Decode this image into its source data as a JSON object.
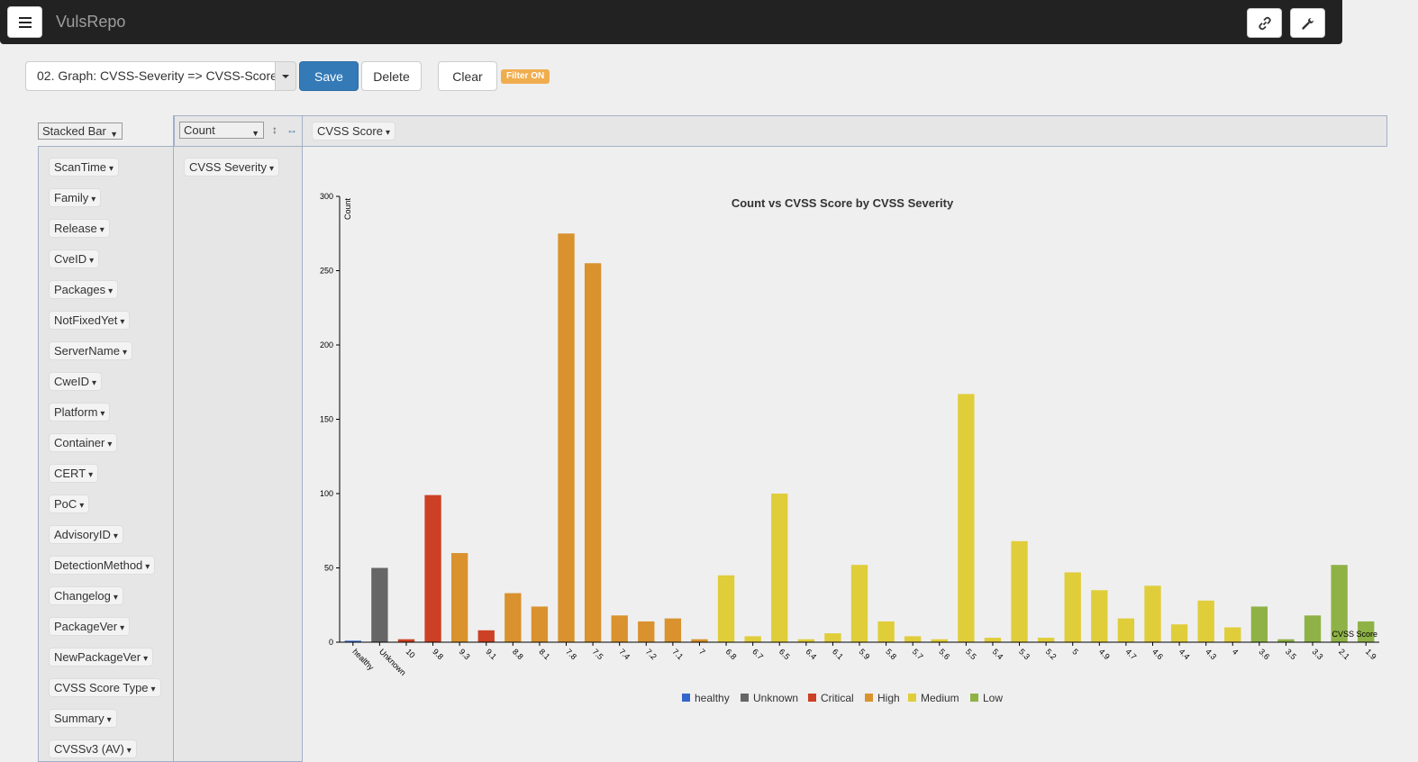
{
  "app": {
    "brand": "VulsRepo"
  },
  "toolbar": {
    "report_value": "02. Graph: CVSS-Severity => CVSS-Score",
    "save_label": "Save",
    "delete_label": "Delete",
    "clear_label": "Clear",
    "filter_badge": "Filter ON"
  },
  "pivot": {
    "renderer": "Stacked Bar",
    "aggregator": "Count",
    "column_attr": "CVSS Score",
    "row_attr": "CVSS Severity",
    "attributes": [
      "ScanTime",
      "Family",
      "Release",
      "CveID",
      "Packages",
      "NotFixedYet",
      "ServerName",
      "CweID",
      "Platform",
      "Container",
      "CERT",
      "PoC",
      "AdvisoryID",
      "DetectionMethod",
      "Changelog",
      "PackageVer",
      "NewPackageVer",
      "CVSS Score Type",
      "Summary",
      "CVSSv3 (AV)"
    ]
  },
  "colors": {
    "healthy": "#3366cc",
    "Unknown": "#666666",
    "Critical": "#cc4125",
    "High": "#d9922e",
    "Medium": "#e0cd3a",
    "Low": "#8fb247",
    "navbar": "#222222",
    "primary": "#337ab7",
    "filter_badge": "#f0ad4e"
  },
  "icons": {
    "menu": "menu-icon",
    "link": "link-icon",
    "settings": "wrench-icon"
  },
  "chart_data": {
    "type": "bar",
    "title": "Count vs CVSS Score by CVSS Severity",
    "xlabel": "CVSS Score",
    "ylabel": "Count",
    "ylim": [
      0,
      300
    ],
    "yticks": [
      0,
      50,
      100,
      150,
      200,
      250,
      300
    ],
    "legend_position": "bottom",
    "legend": [
      "healthy",
      "Unknown",
      "Critical",
      "High",
      "Medium",
      "Low"
    ],
    "categories": [
      "healthy",
      "Unknown",
      "10",
      "9.8",
      "9.3",
      "9.1",
      "8.8",
      "8.1",
      "7.8",
      "7.5",
      "7.4",
      "7.2",
      "7.1",
      "7",
      "6.8",
      "6.7",
      "6.5",
      "6.4",
      "6.1",
      "5.9",
      "5.8",
      "5.7",
      "5.6",
      "5.5",
      "5.4",
      "5.3",
      "5.2",
      "5",
      "4.9",
      "4.7",
      "4.6",
      "4.4",
      "4.3",
      "4",
      "3.6",
      "3.5",
      "3.3",
      "2.1",
      "1.9"
    ],
    "series_of_category": [
      "healthy",
      "Unknown",
      "Critical",
      "Critical",
      "High",
      "Critical",
      "High",
      "High",
      "High",
      "High",
      "High",
      "High",
      "High",
      "High",
      "Medium",
      "Medium",
      "Medium",
      "Medium",
      "Medium",
      "Medium",
      "Medium",
      "Medium",
      "Medium",
      "Medium",
      "Medium",
      "Medium",
      "Medium",
      "Medium",
      "Medium",
      "Medium",
      "Medium",
      "Medium",
      "Medium",
      "Medium",
      "Low",
      "Low",
      "Low",
      "Low",
      "Low"
    ],
    "values": [
      1,
      50,
      2,
      99,
      60,
      8,
      33,
      24,
      275,
      255,
      18,
      14,
      16,
      2,
      45,
      4,
      100,
      2,
      6,
      52,
      14,
      4,
      2,
      167,
      3,
      68,
      3,
      47,
      35,
      16,
      38,
      12,
      28,
      10,
      24,
      2,
      18,
      52,
      14
    ]
  }
}
